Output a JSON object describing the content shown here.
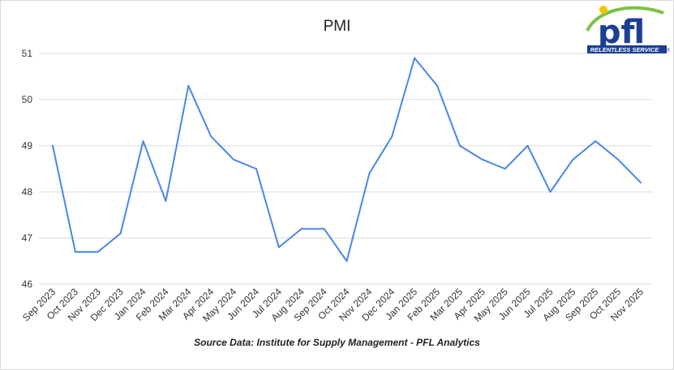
{
  "chart_data": {
    "type": "line",
    "title": "PMI",
    "xlabel": "",
    "ylabel": "",
    "ylim": [
      46,
      51
    ],
    "yticks": [
      "46",
      "47",
      "48",
      "49",
      "50",
      "51"
    ],
    "grid": true,
    "legend": "none",
    "categories": [
      "Sep 2023",
      "Oct 2023",
      "Nov 2023",
      "Dec 2023",
      "Jan 2024",
      "Feb 2024",
      "Mar 2024",
      "Apr 2024",
      "May 2024",
      "Jun 2024",
      "Jul 2024",
      "Aug 2024",
      "Sep 2024",
      "Oct 2024",
      "Nov 2024",
      "Dec 2024",
      "Jan 2025",
      "Feb 2025",
      "Mar 2025",
      "Apr 2025",
      "May 2025",
      "Jun 2025",
      "Jul 2025",
      "Aug 2025",
      "Sep 2025",
      "Oct 2025",
      "Nov 2025"
    ],
    "series": [
      {
        "values": [
          49.0,
          46.7,
          46.7,
          47.1,
          49.1,
          47.8,
          50.3,
          49.2,
          48.7,
          48.5,
          46.8,
          47.2,
          47.2,
          46.5,
          48.4,
          49.2,
          50.9,
          50.3,
          49.0,
          48.7,
          48.5,
          49.0,
          48.0,
          48.7,
          49.1,
          48.7,
          48.2
        ],
        "color": "#4a86e8"
      }
    ]
  },
  "source_note": "Source Data: Institute for Supply Management - PFL Analytics",
  "logo": {
    "text": "pfl",
    "tagline": "RELENTLESS SERVICE",
    "trademark": "®",
    "colors": {
      "text": "#1c3f94",
      "swoosh": "#7ac143",
      "dot": "#f5c400"
    }
  }
}
